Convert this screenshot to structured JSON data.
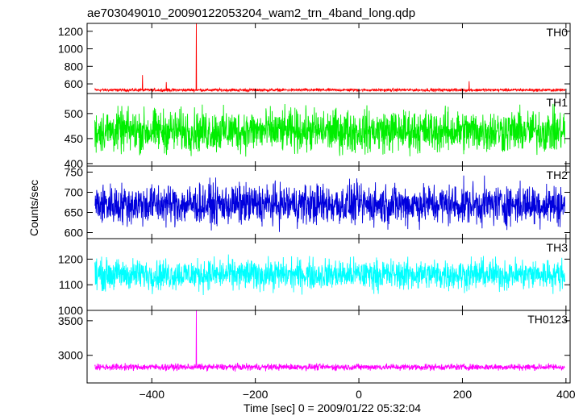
{
  "chart_data": {
    "type": "line",
    "title": "ae703049010_20090122053204_wam2_trn_4band_long.qdp",
    "xlabel": "Time [sec] 0 = 2009/01/22 05:32:04",
    "ylabel": "Counts/sec",
    "xlim": [
      -525,
      408
    ],
    "x_ticks": [
      -400,
      -200,
      0,
      200,
      400
    ],
    "x_tick_labels": [
      "−400",
      "−200",
      "0",
      "200",
      "400"
    ],
    "x_sampling_sec": 0.5,
    "grid": false,
    "panels": [
      {
        "name": "TH0",
        "color": "#ff0000",
        "ylim": [
          490,
          1290
        ],
        "y_ticks": [
          600,
          800,
          1000,
          1200
        ],
        "baseline": 530,
        "noise_amplitude": 12,
        "spikes": [
          {
            "x": -314,
            "y": 1290
          },
          {
            "x": -418,
            "y": 700
          },
          {
            "x": -372,
            "y": 620
          },
          {
            "x": 213,
            "y": 630
          }
        ]
      },
      {
        "name": "TH1",
        "color": "#00ee00",
        "ylim": [
          395,
          540
        ],
        "y_ticks": [
          400,
          450,
          500
        ],
        "baseline": 465,
        "noise_amplitude": 32,
        "spikes": []
      },
      {
        "name": "TH2",
        "color": "#0000dd",
        "ylim": [
          585,
          765
        ],
        "y_ticks": [
          600,
          650,
          700,
          750
        ],
        "baseline": 670,
        "noise_amplitude": 38,
        "spikes": []
      },
      {
        "name": "TH3",
        "color": "#00ffff",
        "ylim": [
          1000,
          1280
        ],
        "y_ticks": [
          1000,
          1100,
          1200
        ],
        "baseline": 1140,
        "noise_amplitude": 45,
        "spikes": []
      },
      {
        "name": "TH0123",
        "color": "#ff00ff",
        "ylim": [
          2600,
          3650
        ],
        "y_ticks": [
          3000,
          3500
        ],
        "baseline": 2830,
        "noise_amplitude": 35,
        "spikes": [
          {
            "x": -314,
            "y": 3650
          }
        ]
      }
    ]
  }
}
